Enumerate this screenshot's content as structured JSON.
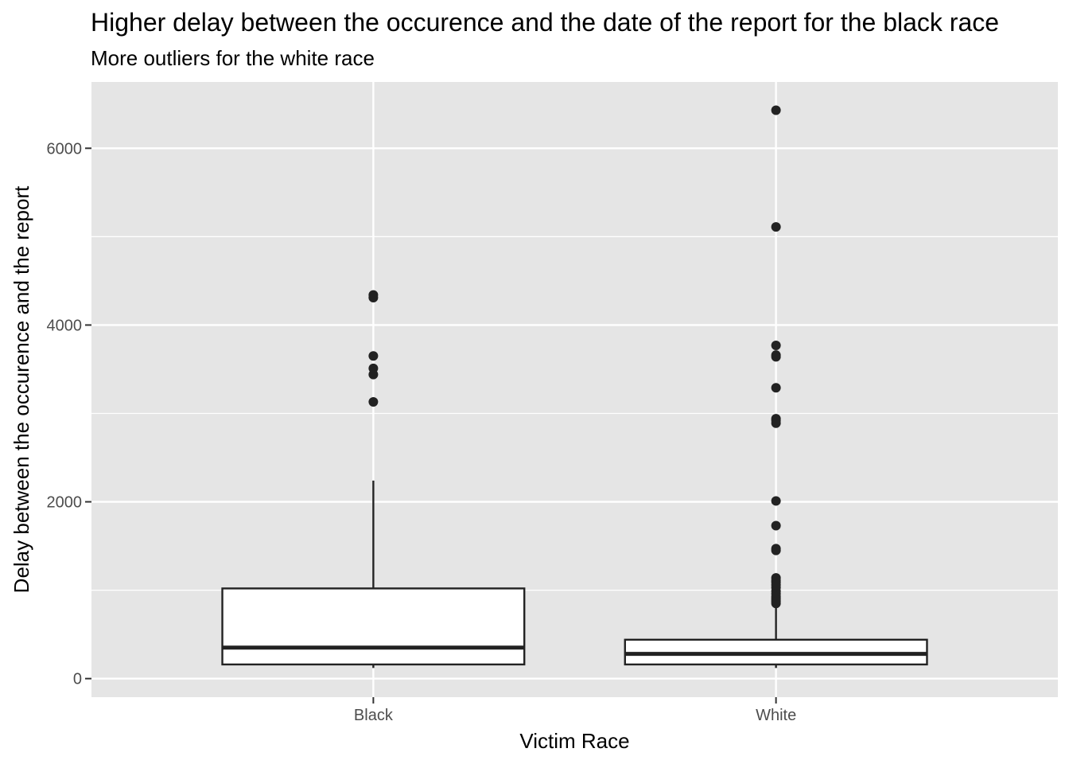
{
  "chart_data": {
    "type": "boxplot",
    "title": "Higher delay between the occurence and the date of the report for the black race",
    "subtitle": "More outliers for the white race",
    "xlabel": "Victim Race",
    "ylabel": "Delay between the occurence and the report",
    "categories": [
      "Black",
      "White"
    ],
    "y_ticks": [
      0,
      2000,
      4000,
      6000
    ],
    "ylim": [
      -210,
      6750
    ],
    "grid": true,
    "boxes": [
      {
        "category": "Black",
        "lower_whisker": 120,
        "q1": 160,
        "median": 350,
        "q3": 1020,
        "upper_whisker": 2240,
        "outliers": [
          4340,
          4310,
          3650,
          3510,
          3440,
          3130
        ]
      },
      {
        "category": "White",
        "lower_whisker": 120,
        "q1": 160,
        "median": 280,
        "q3": 440,
        "upper_whisker": 800,
        "outliers": [
          6430,
          5110,
          3770,
          3660,
          3640,
          3290,
          2940,
          2920,
          2890,
          2010,
          1730,
          1470,
          1450,
          1140,
          1110,
          1090,
          1060,
          1030,
          990,
          960,
          930,
          910,
          890,
          870,
          850
        ]
      }
    ],
    "colors": {
      "panel": "#e5e5e5",
      "grid": "#ffffff",
      "box_fill": "#ffffff",
      "box_stroke": "#222222",
      "point": "#222222"
    }
  }
}
